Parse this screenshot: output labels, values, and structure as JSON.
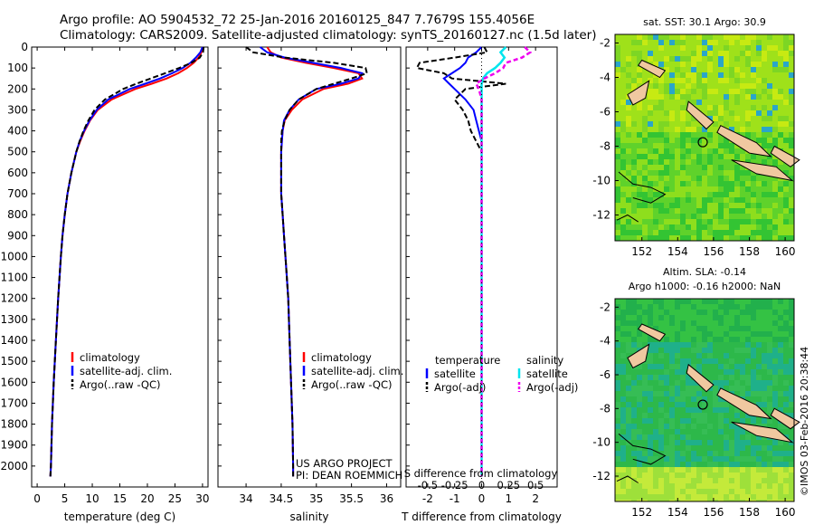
{
  "header": {
    "line1": "Argo profile: AO 5904532_72 25-Jan-2016 20160125_847 7.7679S 155.4056E",
    "line2": "Climatology: CARS2009. Satellite-adjusted climatology: synTS_20160127.nc (1.5d later)"
  },
  "footer_stamp": "©IMOS 03-Feb-2016 20:38:44",
  "colors": {
    "climatology": "#ff0000",
    "satellite": "#0000ff",
    "argo": "#000000",
    "satellite_s": "#00e5ee",
    "argo_s": "#ee00ee",
    "land": "#f0c8a0"
  },
  "chart_data": [
    {
      "id": "temperature",
      "type": "line",
      "xlabel": "temperature (deg C)",
      "ylabel": "",
      "xlim": [
        -1,
        31
      ],
      "ylim": [
        2100,
        0
      ],
      "xticks": [
        "0",
        "5",
        "10",
        "15",
        "20",
        "25",
        "30"
      ],
      "yticks": [
        "0",
        "100",
        "200",
        "300",
        "400",
        "500",
        "600",
        "700",
        "800",
        "900",
        "1000",
        "1100",
        "1200",
        "1300",
        "1400",
        "1500",
        "1600",
        "1700",
        "1800",
        "1900",
        "2000"
      ],
      "legend": [
        "climatology",
        "satellite-adj. clim.",
        "Argo(..raw -QC)"
      ],
      "depth": [
        0,
        25,
        50,
        75,
        100,
        125,
        150,
        175,
        200,
        250,
        300,
        350,
        400,
        450,
        500,
        600,
        700,
        800,
        900,
        1000,
        1200,
        1400,
        1600,
        1800,
        2000,
        2050
      ],
      "series": [
        {
          "name": "climatology",
          "values": [
            30,
            29.8,
            29.3,
            28.4,
            27.2,
            25.6,
            23.5,
            20.8,
            17.8,
            13.5,
            11.0,
            9.6,
            8.6,
            7.8,
            7.1,
            6.2,
            5.5,
            5.0,
            4.6,
            4.3,
            3.8,
            3.4,
            3.0,
            2.7,
            2.5,
            2.4
          ]
        },
        {
          "name": "satellite-adj. clim.",
          "values": [
            30,
            29.6,
            28.8,
            27.8,
            26.4,
            24.5,
            22.3,
            19.6,
            16.8,
            12.9,
            10.8,
            9.5,
            8.5,
            7.7,
            7.1,
            6.2,
            5.5,
            5.0,
            4.6,
            4.3,
            3.8,
            3.4,
            3.0,
            2.7,
            2.5,
            2.4
          ]
        },
        {
          "name": "Argo(..raw -QC)",
          "values": [
            30.2,
            30.1,
            29.5,
            28.0,
            25.8,
            23.2,
            20.6,
            18.0,
            15.6,
            12.3,
            10.4,
            9.3,
            8.4,
            7.7,
            7.1,
            6.2,
            5.5,
            5.0,
            4.6,
            4.3,
            3.8,
            3.4,
            3.0,
            2.7,
            2.5,
            2.4
          ]
        }
      ],
      "annotation": ""
    },
    {
      "id": "salinity",
      "type": "line",
      "xlabel": "salinity",
      "ylabel": "",
      "xlim": [
        33.6,
        36.2
      ],
      "ylim": [
        2100,
        0
      ],
      "xticks": [
        "34",
        "34.5",
        "35",
        "35.5",
        "36"
      ],
      "legend": [
        "climatology",
        "satellite-adj. clim.",
        "Argo(..raw -QC)"
      ],
      "depth": [
        0,
        25,
        50,
        75,
        100,
        125,
        150,
        175,
        200,
        250,
        300,
        350,
        400,
        450,
        500,
        600,
        700,
        800,
        900,
        1000,
        1200,
        1400,
        1600,
        1800,
        2000,
        2050
      ],
      "series": [
        {
          "name": "climatology",
          "values": [
            34.3,
            34.35,
            34.5,
            34.85,
            35.25,
            35.6,
            35.65,
            35.45,
            35.1,
            34.8,
            34.65,
            34.55,
            34.52,
            34.51,
            34.5,
            34.5,
            34.5,
            34.52,
            34.54,
            34.56,
            34.6,
            34.62,
            34.64,
            34.66,
            34.67,
            34.67
          ]
        },
        {
          "name": "satellite-adj. clim.",
          "values": [
            34.2,
            34.3,
            34.55,
            34.95,
            35.35,
            35.65,
            35.6,
            35.35,
            35.0,
            34.75,
            34.62,
            34.54,
            34.52,
            34.51,
            34.5,
            34.5,
            34.5,
            34.52,
            34.54,
            34.56,
            34.6,
            34.62,
            34.64,
            34.66,
            34.67,
            34.67
          ]
        },
        {
          "name": "Argo(..raw -QC)",
          "values": [
            34.0,
            34.1,
            34.55,
            35.25,
            35.7,
            35.72,
            35.5,
            35.25,
            35.0,
            34.75,
            34.62,
            34.55,
            34.51,
            34.5,
            34.5,
            34.5,
            34.5,
            34.52,
            34.54,
            34.56,
            34.6,
            34.62,
            34.64,
            34.66,
            34.67,
            34.67
          ]
        }
      ],
      "annotation": "US ARGO PROJECT\nPI: DEAN ROEMMICH"
    },
    {
      "id": "difference",
      "type": "line",
      "xlabel": "T difference from climatology",
      "top_label": "S difference from climatology",
      "ylabel": "",
      "xlim": [
        -2.8,
        2.8
      ],
      "ylim": [
        2100,
        0
      ],
      "xticks": [
        "-2",
        "-1",
        "0",
        "1",
        "2"
      ],
      "s_ticks": [
        "-0.5",
        "-0.25",
        "0",
        "0.25",
        "0.5"
      ],
      "legend_titles": [
        "temperature",
        "salinity"
      ],
      "legend": [
        "satellite",
        "Argo(-adj)",
        "satellite",
        "Argo(-adj)"
      ],
      "depth": [
        0,
        25,
        50,
        75,
        100,
        125,
        150,
        175,
        200,
        250,
        300,
        350,
        400,
        450,
        500,
        600,
        700,
        800,
        900,
        1000,
        1200,
        1400,
        1600,
        1800,
        2000,
        2050
      ],
      "series": [
        {
          "name": "temperature satellite",
          "values": [
            0,
            -0.2,
            -0.5,
            -0.6,
            -0.8,
            -1.1,
            -1.4,
            -1.2,
            -1.0,
            -0.6,
            -0.3,
            -0.2,
            -0.1,
            0,
            0,
            0,
            0,
            0,
            0,
            0,
            0,
            0,
            0,
            0,
            0,
            0
          ]
        },
        {
          "name": "temperature Argo(-adj)",
          "values": [
            0.1,
            0.2,
            -1.0,
            -2.3,
            -2.4,
            -1.4,
            -1.1,
            0.9,
            -0.6,
            -1.0,
            -0.7,
            -0.5,
            -0.4,
            -0.2,
            0,
            0,
            0,
            0,
            0,
            0,
            0,
            0,
            0,
            0,
            0,
            0
          ]
        },
        {
          "name": "salinity satellite",
          "values": [
            0.9,
            0.7,
            0.85,
            0.7,
            0.5,
            0.2,
            0.05,
            0,
            0,
            0,
            0,
            0,
            0,
            0,
            0,
            0,
            0,
            0,
            0,
            0,
            0,
            0,
            0,
            0,
            0,
            0
          ]
        },
        {
          "name": "salinity Argo(-adj)",
          "values": [
            1.6,
            1.8,
            1.5,
            0.9,
            0.8,
            0.5,
            0.1,
            -0.2,
            -0.1,
            0,
            0,
            0,
            0,
            0,
            0,
            0,
            0,
            0,
            0,
            0,
            0,
            0,
            0,
            0,
            0,
            0
          ]
        }
      ]
    },
    {
      "id": "sst-map",
      "type": "heatmap",
      "title": "sat. SST: 30.1  Argo: 30.9",
      "xticks": [
        "152",
        "154",
        "156",
        "158",
        "160"
      ],
      "yticks": [
        "-2",
        "-4",
        "-6",
        "-8",
        "-10",
        "-12"
      ],
      "xlim": [
        150.5,
        160.5
      ],
      "ylim": [
        -13.5,
        -1.5
      ],
      "marker": {
        "lon": 155.4,
        "lat": -7.77
      }
    },
    {
      "id": "sla-map",
      "type": "heatmap",
      "title": "Altim. SLA: -0.14",
      "subtitle": "Argo h1000: -0.16 h2000: NaN",
      "xticks": [
        "152",
        "154",
        "156",
        "158",
        "160"
      ],
      "yticks": [
        "-2",
        "-4",
        "-6",
        "-8",
        "-10",
        "-12"
      ],
      "xlim": [
        150.5,
        160.5
      ],
      "ylim": [
        -13.5,
        -1.5
      ],
      "marker": {
        "lon": 155.4,
        "lat": -7.77
      }
    }
  ]
}
